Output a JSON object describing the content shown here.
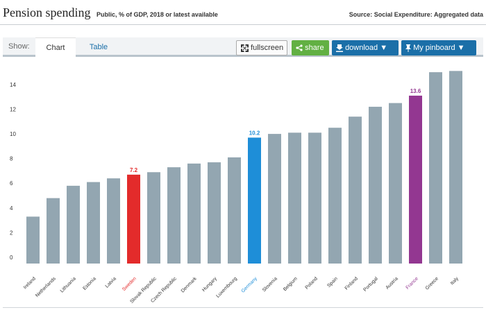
{
  "header": {
    "title": "Pension spending",
    "subtitle": "Public, % of GDP, 2018 or latest available",
    "source": "Source: Social Expenditure: Aggregated data"
  },
  "toolbar": {
    "show_label": "Show:",
    "tabs": [
      {
        "label": "Chart",
        "active": true
      },
      {
        "label": "Table",
        "active": false
      }
    ],
    "fullscreen_label": "fullscreen",
    "share_label": "share",
    "download_label": "download",
    "pinboard_label": "My pinboard"
  },
  "colors": {
    "default_bar": "#93a6b1",
    "highlight_red": "#e32b2b",
    "highlight_blue": "#1e8ed8",
    "highlight_purple": "#933791",
    "tab_blue": "#1b6fa8",
    "share_green": "#62b043"
  },
  "chart_data": {
    "type": "bar",
    "title": "",
    "xlabel": "",
    "ylabel": "",
    "ylim": [
      0,
      16
    ],
    "yticks": [
      0,
      2,
      4,
      6,
      8,
      10,
      12,
      14
    ],
    "grid": false,
    "categories": [
      "Ireland",
      "Netherlands",
      "Lithuania",
      "Estonia",
      "Latvia",
      "Sweden",
      "Slovak Republic",
      "Czech Republic",
      "Denmark",
      "Hungary",
      "Luxembourg",
      "Germany",
      "Slovenia",
      "Belgium",
      "Poland",
      "Spain",
      "Finland",
      "Portugal",
      "Austria",
      "France",
      "Greece",
      "Italy"
    ],
    "values": [
      3.8,
      5.3,
      6.3,
      6.6,
      6.9,
      7.2,
      7.4,
      7.8,
      8.1,
      8.2,
      8.6,
      10.2,
      10.5,
      10.6,
      10.6,
      11.0,
      11.9,
      12.7,
      13.0,
      13.6,
      15.5,
      15.6
    ],
    "highlights": [
      {
        "category": "Sweden",
        "label": "7.2",
        "color": "#e32b2b"
      },
      {
        "category": "Germany",
        "label": "10.2",
        "color": "#1e8ed8"
      },
      {
        "category": "France",
        "label": "13.6",
        "color": "#933791"
      }
    ]
  }
}
